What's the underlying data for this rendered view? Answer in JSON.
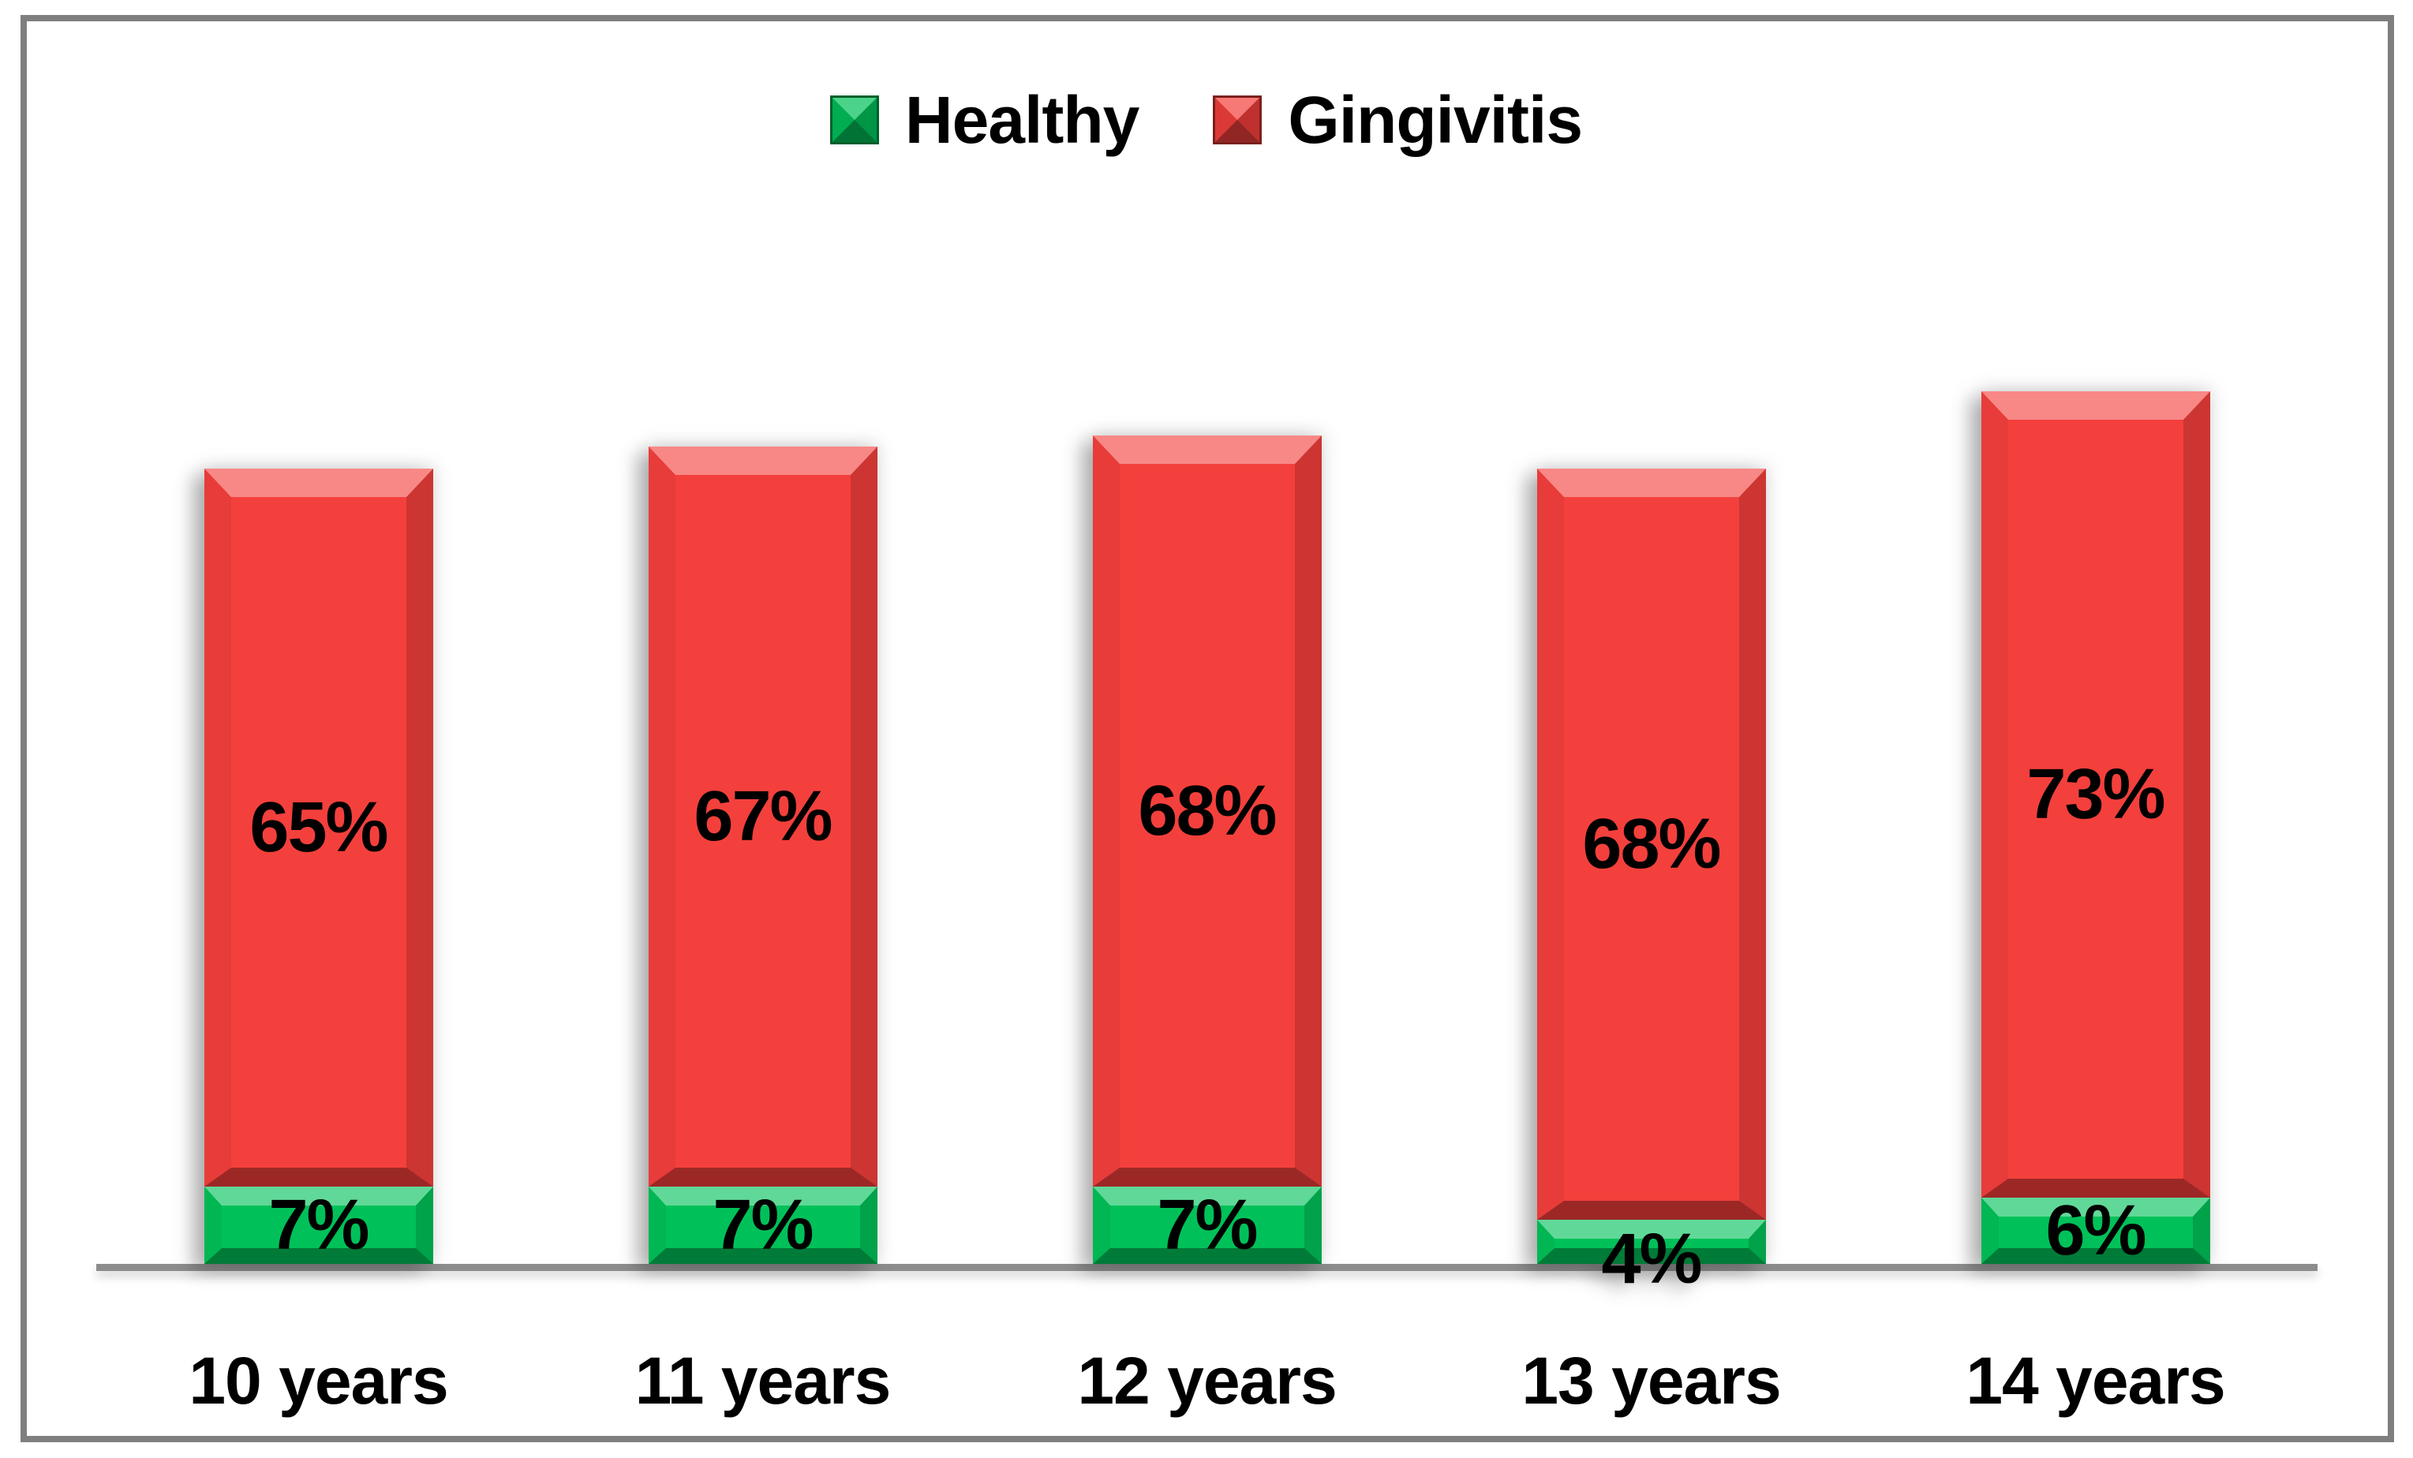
{
  "chart_data": {
    "type": "bar",
    "stacked": true,
    "title": "",
    "xlabel": "",
    "ylabel": "",
    "grid": false,
    "legend_position": "top",
    "ylim_estimate": [
      0,
      80
    ],
    "categories": [
      "10 years",
      "11 years",
      "12 years",
      "13 years",
      "14 years"
    ],
    "series": [
      {
        "name": "Healthy",
        "color": "#00C159",
        "values": [
          7,
          7,
          7,
          4,
          6
        ],
        "labels": [
          "7%",
          "7%",
          "7%",
          "4%",
          "6%"
        ]
      },
      {
        "name": "Gingivitis",
        "color": "#F4403C",
        "values": [
          65,
          67,
          68,
          68,
          73
        ],
        "labels": [
          "65%",
          "67%",
          "68%",
          "68%",
          "73%"
        ]
      }
    ],
    "totals_visible": false
  },
  "colors": {
    "healthy_green": "#00C159",
    "gingivitis_red": "#F4403C",
    "axis_line": "#8C8C8C",
    "frame_border": "#7F7F7F",
    "background": "#FFFFFF",
    "label_text": "#000000"
  }
}
